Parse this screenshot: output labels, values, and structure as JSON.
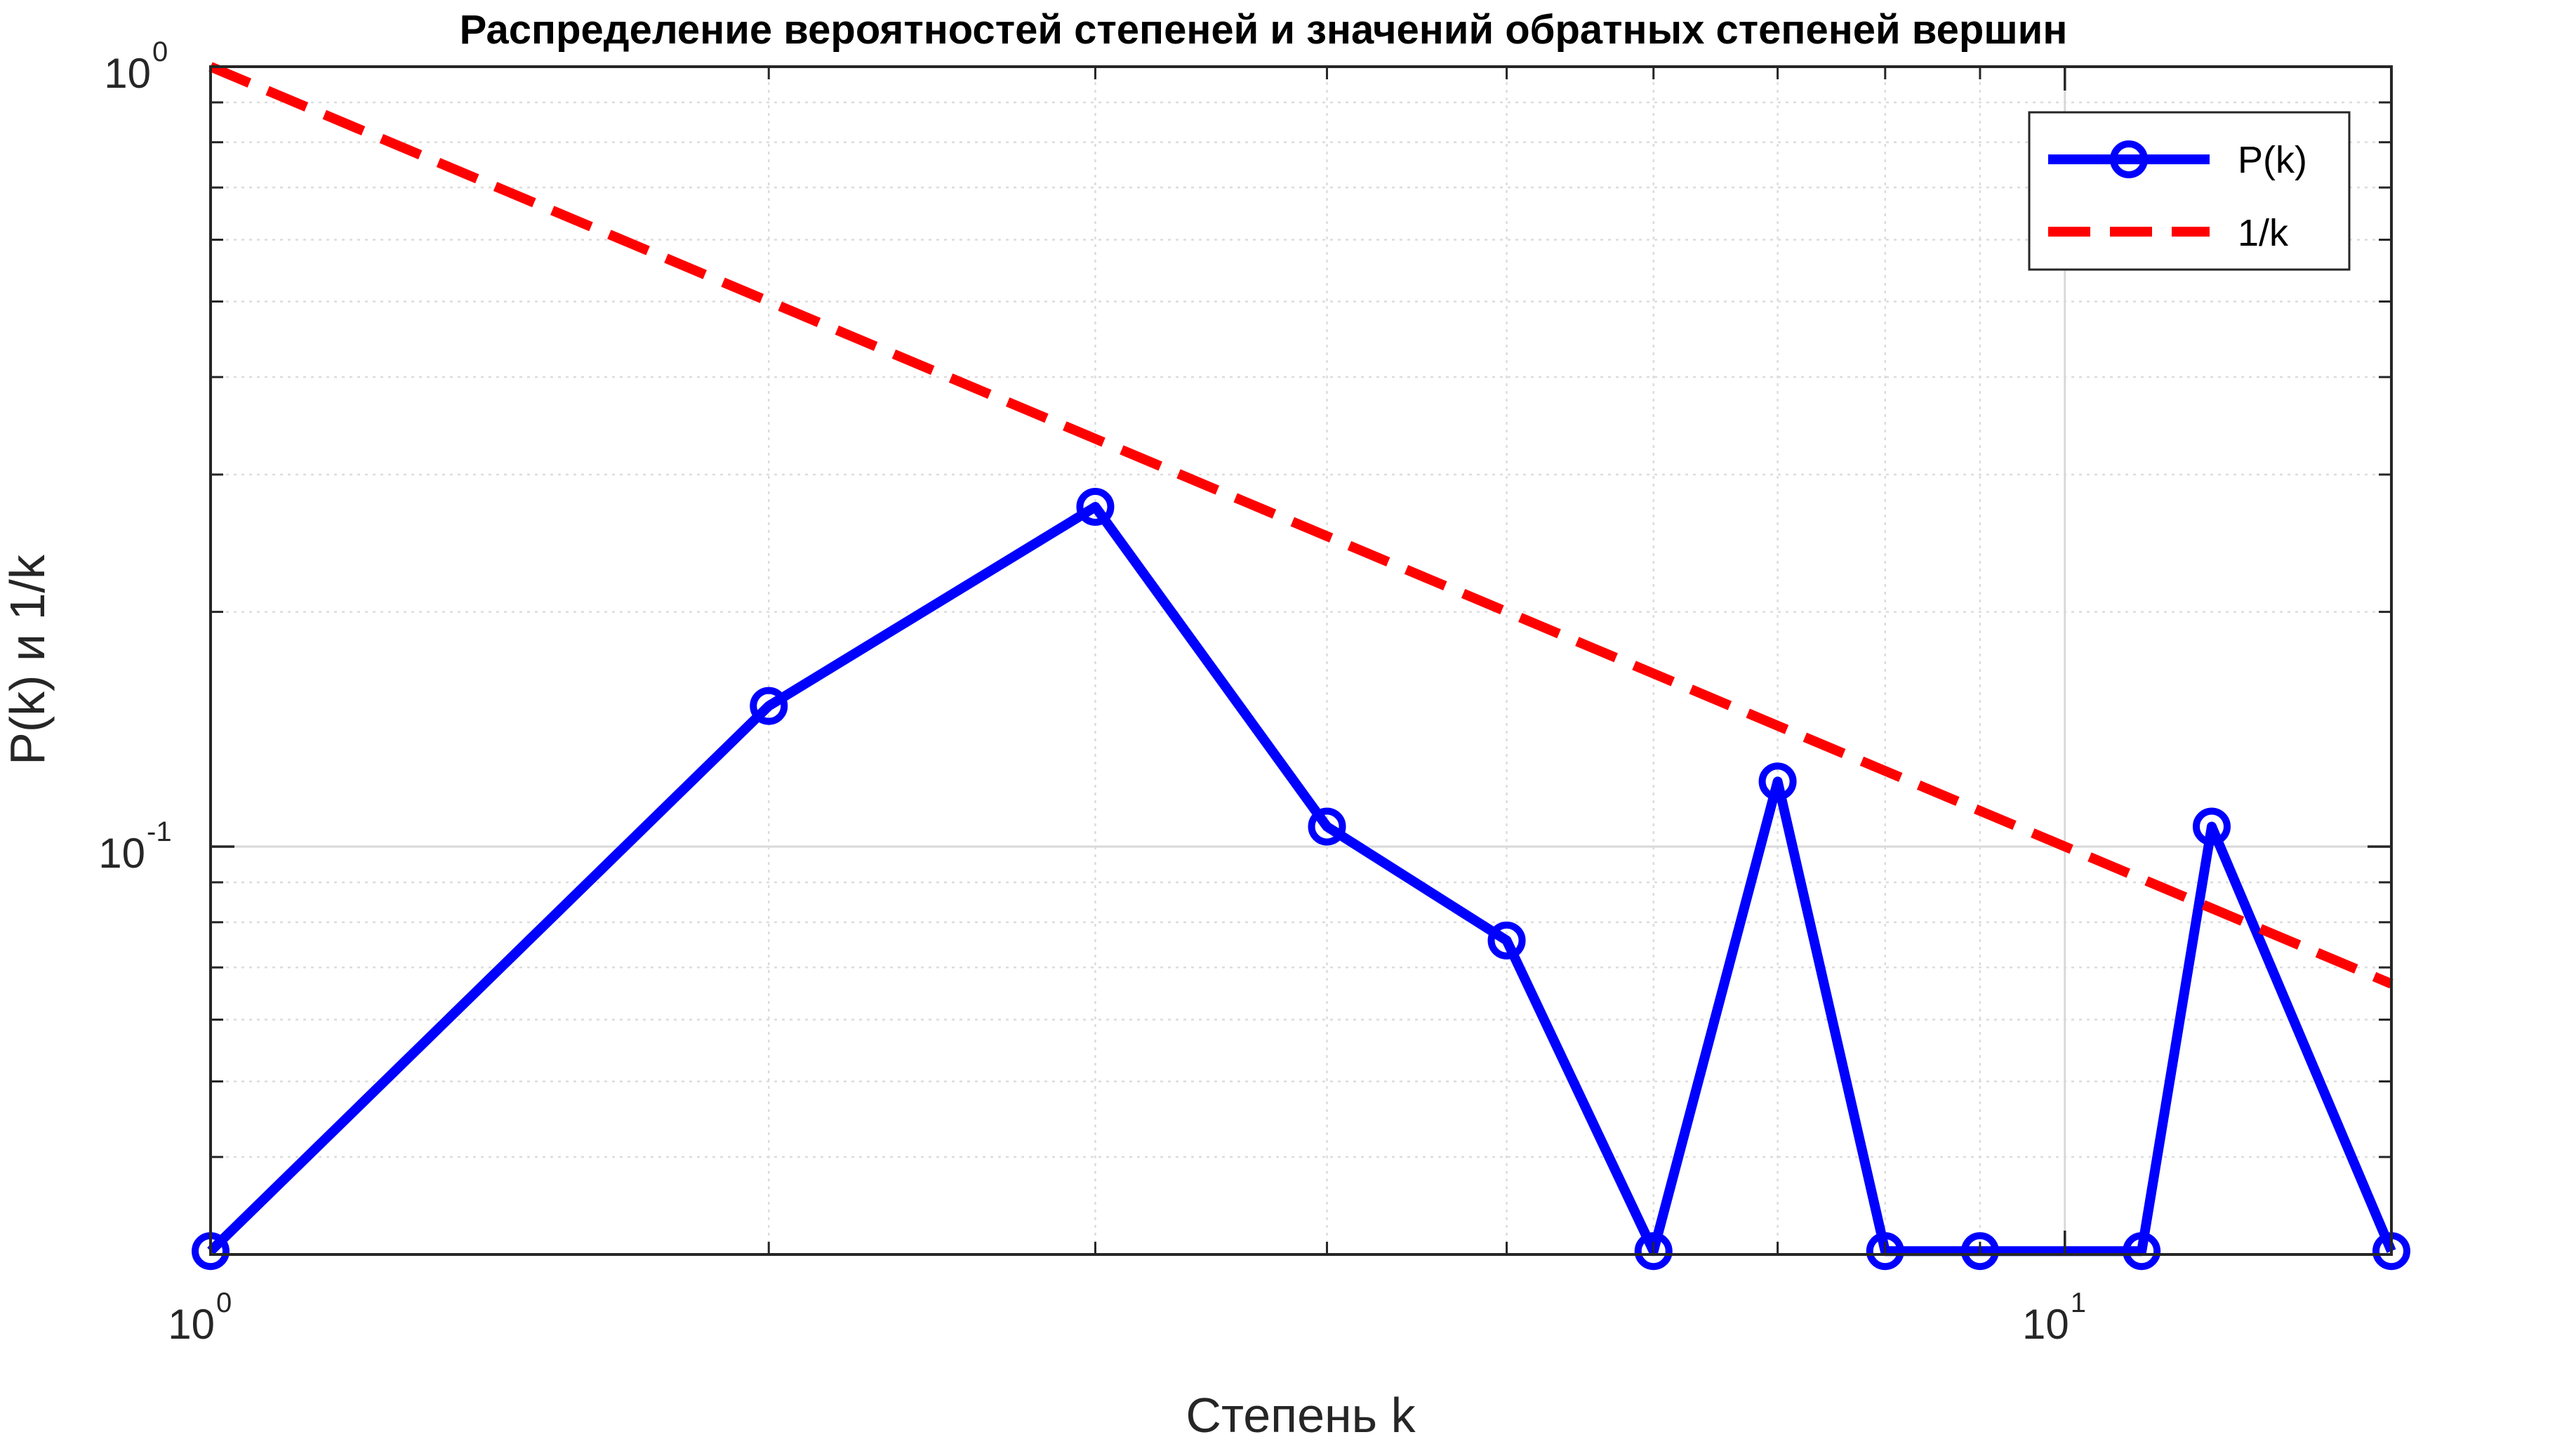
{
  "chart_data": {
    "type": "line",
    "title": "Распределение вероятностей степеней и значений обратных степеней вершин",
    "xlabel": "Степень k",
    "ylabel": "P(k) и 1/k",
    "xscale": "log",
    "yscale": "log",
    "xlim": [
      1,
      15
    ],
    "ylim": [
      0.03,
      1
    ],
    "grid": true,
    "minor_grid": true,
    "legend_position": "top-right",
    "x_ticks": [
      {
        "value": 1,
        "base": "10",
        "exp": "0"
      },
      {
        "value": 10,
        "base": "10",
        "exp": "1"
      }
    ],
    "y_ticks": [
      {
        "value": 1,
        "base": "10",
        "exp": "0"
      },
      {
        "value": 0.1,
        "base": "10",
        "exp": "-1"
      }
    ],
    "series": [
      {
        "name": "P(k)",
        "color": "#0000ff",
        "style": "solid",
        "marker": "circle",
        "x": [
          1,
          2,
          3,
          4,
          5,
          6,
          7,
          8,
          9,
          11,
          12,
          15
        ],
        "y": [
          0.0303,
          0.1515,
          0.2727,
          0.1061,
          0.0758,
          0.0303,
          0.1212,
          0.0303,
          0.0303,
          0.0303,
          0.1061,
          0.0303
        ]
      },
      {
        "name": "1/k",
        "color": "#ff0000",
        "style": "dashed",
        "marker": "none",
        "x": [
          1,
          15
        ],
        "y": [
          1,
          0.0667
        ]
      }
    ]
  }
}
